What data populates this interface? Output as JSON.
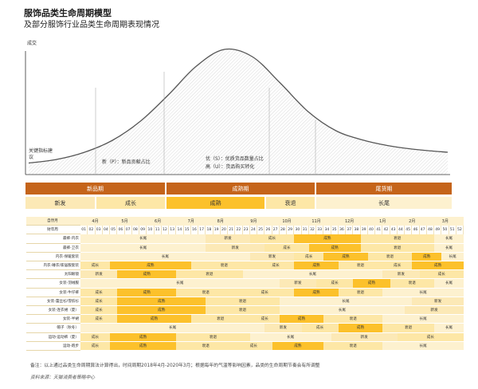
{
  "title": "服饰品类生命周期模型",
  "subtitle": "及部分服饰行业品类生命周期表现情况",
  "colors": {
    "phase_bar": "#c5641a",
    "new": "#fce9b6",
    "growth": "#fde7a6",
    "mature": "#fcc12b",
    "decline": "#fde7a6",
    "tail": "#fdf1cf",
    "accent_orange": "#e8a318"
  },
  "chart_data": {
    "type": "line",
    "title": "服饰品类生命周期模型",
    "ylabel": "成交",
    "xlabel": "",
    "series": [
      {
        "values": [
          5,
          8,
          14,
          24,
          40,
          62,
          86,
          100,
          94,
          72,
          48,
          32,
          24,
          19,
          16,
          14
        ]
      }
    ],
    "annotations": [
      "关键指标建议",
      "新（P）：新品贡献占比",
      "优（S）：优质货品数量占比",
      "高（U）：货品购买转化"
    ]
  },
  "phases": [
    "新品期",
    "成熟期",
    "尾货期"
  ],
  "stages": [
    "新发",
    "成长",
    "成熟",
    "衰退",
    "长尾"
  ],
  "table": {
    "header_month_label": "自然月",
    "header_week_label": "财年周",
    "months": [
      "4月",
      "5月",
      "6月",
      "7月",
      "8月",
      "9月",
      "10月",
      "11月",
      "12月",
      "1月",
      "2月",
      "3月"
    ],
    "weeks": [
      "01",
      "02",
      "03",
      "04",
      "05",
      "06",
      "07",
      "08",
      "09",
      "10",
      "11",
      "12",
      "13",
      "14",
      "15",
      "16",
      "17",
      "18",
      "19",
      "20",
      "21",
      "22",
      "23",
      "24",
      "25",
      "26",
      "27",
      "28",
      "29",
      "30",
      "31",
      "32",
      "33",
      "34",
      "35",
      "36",
      "37",
      "38",
      "39",
      "40",
      "41",
      "42",
      "43",
      "44",
      "45",
      "46",
      "47",
      "48",
      "49",
      "50",
      "51",
      "52"
    ],
    "rows": [
      {
        "label": "最裤-内衣",
        "segments": [
          {
            "t": "长尾",
            "w": 17
          },
          {
            "t": "新发",
            "w": 6
          },
          {
            "t": "成长",
            "w": 6
          },
          {
            "t": "成熟",
            "w": 9
          },
          {
            "t": "衰退",
            "w": 10
          },
          {
            "t": "长尾",
            "w": 4
          }
        ]
      },
      {
        "label": "最裤-卫衣",
        "segments": [
          {
            "t": "长尾",
            "w": 17
          },
          {
            "t": "新发",
            "w": 8
          },
          {
            "t": "成长",
            "w": 6
          },
          {
            "t": "成熟",
            "w": 7
          },
          {
            "t": "衰退",
            "w": 10
          },
          {
            "t": "长尾",
            "w": 4
          }
        ]
      },
      {
        "label": "内衣-保暖套装",
        "segments": [
          {
            "t": "长尾",
            "w": 23
          },
          {
            "t": "新发",
            "w": 6
          },
          {
            "t": "成长",
            "w": 4
          },
          {
            "t": "成熟",
            "w": 6
          },
          {
            "t": "衰退",
            "w": 6
          },
          {
            "t": "成熟",
            "w": 4
          },
          {
            "t": "长尾",
            "w": 3
          }
        ]
      },
      {
        "label": "内衣-睡衣/家居服套装",
        "segments": [
          {
            "t": "成长",
            "w": 4
          },
          {
            "t": "成熟",
            "w": 11
          },
          {
            "t": "衰退",
            "w": 9
          },
          {
            "t": "成长",
            "w": 5
          },
          {
            "t": "成熟",
            "w": 6
          },
          {
            "t": "衰退",
            "w": 6
          },
          {
            "t": "成长",
            "w": 4
          },
          {
            "t": "成熟",
            "w": 7
          }
        ]
      },
      {
        "label": "太阳眼镜",
        "segments": [
          {
            "t": "新发",
            "w": 5
          },
          {
            "t": "成熟",
            "w": 8
          },
          {
            "t": "衰退",
            "w": 9
          },
          {
            "t": "长尾",
            "w": 19
          },
          {
            "t": "新发",
            "w": 5
          },
          {
            "t": "成长",
            "w": 6
          }
        ]
      },
      {
        "label": "女装-羽绒服",
        "segments": [
          {
            "t": "长尾",
            "w": 27
          },
          {
            "t": "新发",
            "w": 5
          },
          {
            "t": "成长",
            "w": 5
          },
          {
            "t": "成熟",
            "w": 5
          },
          {
            "t": "衰退",
            "w": 6
          },
          {
            "t": "长尾",
            "w": 4
          }
        ]
      },
      {
        "label": "女装-牛仔裤",
        "segments": [
          {
            "t": "成长",
            "w": 5
          },
          {
            "t": "成熟",
            "w": 8
          },
          {
            "t": "衰退",
            "w": 8
          },
          {
            "t": "成长",
            "w": 8
          },
          {
            "t": "成熟",
            "w": 6
          },
          {
            "t": "衰退",
            "w": 6
          },
          {
            "t": "长尾",
            "w": 11
          }
        ]
      },
      {
        "label": "女装-蕾丝衫/雪纺衫",
        "segments": [
          {
            "t": "成长",
            "w": 5
          },
          {
            "t": "成熟",
            "w": 12
          },
          {
            "t": "衰退",
            "w": 10
          },
          {
            "t": "长尾",
            "w": 18
          },
          {
            "t": "新发",
            "w": 7
          }
        ]
      },
      {
        "label": "女装-连衣裙（夏）",
        "segments": [
          {
            "t": "成长",
            "w": 5
          },
          {
            "t": "成熟",
            "w": 12
          },
          {
            "t": "衰退",
            "w": 10
          },
          {
            "t": "长尾",
            "w": 17
          },
          {
            "t": "新发",
            "w": 8
          }
        ]
      },
      {
        "label": "女装-半裙",
        "segments": [
          {
            "t": "成长",
            "w": 5
          },
          {
            "t": "成熟",
            "w": 10
          },
          {
            "t": "衰退",
            "w": 8
          },
          {
            "t": "成长",
            "w": 4
          },
          {
            "t": "成熟",
            "w": 6
          },
          {
            "t": "衰退",
            "w": 8
          },
          {
            "t": "长尾",
            "w": 11
          }
        ]
      },
      {
        "label": "帽子（秋冬）",
        "segments": [
          {
            "t": "长尾",
            "w": 25
          },
          {
            "t": "新发",
            "w": 5
          },
          {
            "t": "成长",
            "w": 5
          },
          {
            "t": "成熟",
            "w": 6
          },
          {
            "t": "衰退",
            "w": 7
          },
          {
            "t": "长尾",
            "w": 4
          }
        ]
      },
      {
        "label": "运动-运动裤（夏）",
        "segments": [
          {
            "t": "成长",
            "w": 4
          },
          {
            "t": "成熟",
            "w": 9
          },
          {
            "t": "衰退",
            "w": 10
          },
          {
            "t": "长尾",
            "w": 11
          },
          {
            "t": "新发",
            "w": 9
          },
          {
            "t": "成长",
            "w": 9
          }
        ]
      },
      {
        "label": "运动-跑步",
        "segments": [
          {
            "t": "成长",
            "w": 4
          },
          {
            "t": "成熟",
            "w": 9
          },
          {
            "t": "衰退",
            "w": 8
          },
          {
            "t": "成长",
            "w": 5
          },
          {
            "t": "成熟",
            "w": 7
          },
          {
            "t": "衰退",
            "w": 8
          },
          {
            "t": "长尾",
            "w": 11
          }
        ]
      }
    ]
  },
  "note": "备注：以上通过品类生命周期算法计算得出，时间周期2018年4月-2020年3月；根据每年的气温等影响因素，品类的生命周期节奏会有所调整",
  "source": "资料来源：天猫消费者策略中心"
}
